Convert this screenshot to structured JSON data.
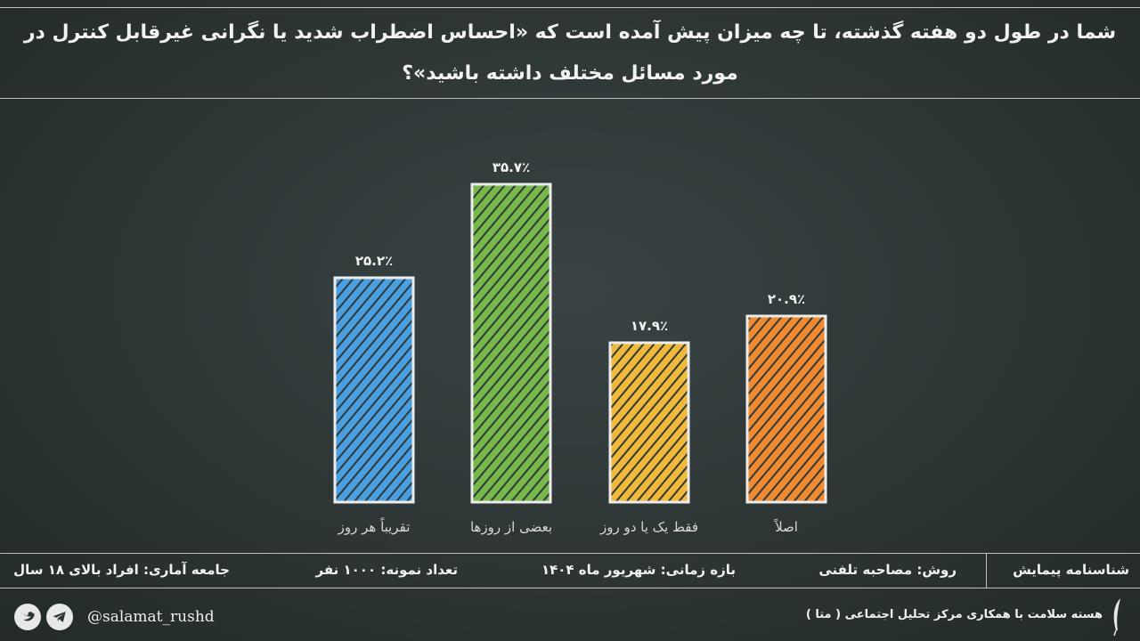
{
  "header": {
    "title": "شما در طول دو هفته گذشته، تا چه میزان پیش آمده است که «احساس اضطراب شدید یا نگرانی غیرقابل کنترل در مورد مسائل مختلف داشته باشید»؟"
  },
  "chart_data": {
    "type": "bar",
    "categories": [
      "تقریباً هر روز",
      "بعضی از روزها",
      "فقط یک یا دو روز",
      "اصلاً"
    ],
    "values": [
      25.2,
      35.7,
      17.9,
      20.9
    ],
    "value_labels": [
      "۲۵.۲٪",
      "۳۵.۷٪",
      "۱۷.۹٪",
      "۲۰.۹٪"
    ],
    "colors": [
      "#4a9fe0",
      "#76b84a",
      "#f0b93a",
      "#f08a30"
    ],
    "ylim": [
      0,
      40
    ],
    "grid": false,
    "legend": "none"
  },
  "footer": {
    "section_label": "شناسنامه پیمایش",
    "method": "روش: مصاحبه تلفنی",
    "period": "بازه زمانی: شهریور ماه ۱۴۰۴",
    "sample": "تعداد نمونه: ۱۰۰۰ نفر",
    "population": "جامعه آماری: افراد بالای ۱۸ سال"
  },
  "social": {
    "handle": "@salamat_rushd",
    "icons": [
      "telegram-icon",
      "twitter-icon"
    ]
  },
  "credit": "هسته سلامت با همکاری مرکز تحلیل اجتماعی ( متا )"
}
